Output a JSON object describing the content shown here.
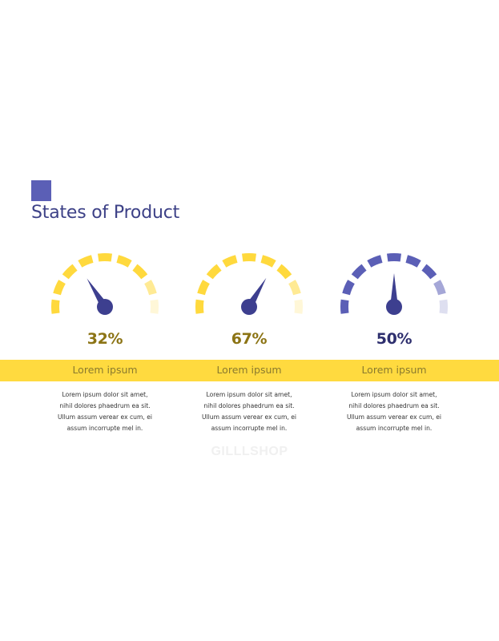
{
  "colors": {
    "accent": "#5b5fb6",
    "title": "#3d4187",
    "band": "#ffda3f",
    "label_text": "#8a7a2e",
    "yellow_gauge": "#ffd93d",
    "purple_gauge": "#5b5fb6",
    "needle": "#3d3f8f",
    "percent_gold": "#8c7415",
    "percent_navy": "#2e2f6e",
    "watermark": "#f0f0f0"
  },
  "page": {
    "title": "States of Product"
  },
  "gauges": [
    {
      "id": "gauge-1",
      "percent_label": "32%",
      "value": 0.32,
      "scheme": "yellow",
      "label": "Lorem ipsum",
      "body": "Lorem ipsum dolor sit amet,\nnihil dolores phaedrum ea sit.\nUllum assum verear ex cum, ei\nassum incorrupte mel in."
    },
    {
      "id": "gauge-2",
      "percent_label": "67%",
      "value": 0.67,
      "scheme": "yellow",
      "label": "Lorem ipsum",
      "body": "Lorem ipsum dolor sit amet,\nnihil dolores phaedrum ea sit.\nUllum assum verear ex cum, ei\nassum incorrupte mel in."
    },
    {
      "id": "gauge-3",
      "percent_label": "50%",
      "value": 0.5,
      "scheme": "purple",
      "label": "Lorem ipsum",
      "body": "Lorem ipsum dolor sit amet,\nnihil dolores phaedrum ea sit.\nUllum assum verear ex cum, ei\nassum incorrupte mel in."
    }
  ],
  "watermark": "GILLLSHOP"
}
